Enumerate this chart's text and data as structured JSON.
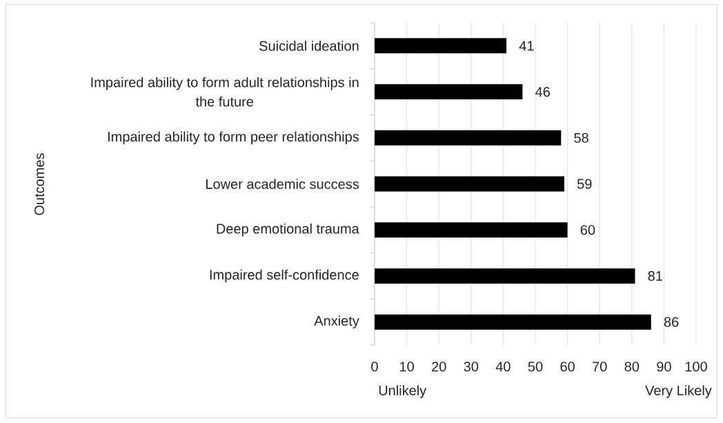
{
  "chart_data": {
    "type": "bar",
    "orientation": "horizontal",
    "ylabel": "Outcomes",
    "categories": [
      "Suicidal ideation",
      "Impaired ability to form adult relationships in the future",
      "Impaired ability to form peer relationships",
      "Lower academic success",
      "Deep emotional trauma",
      "Impaired self-confidence",
      "Anxiety"
    ],
    "values": [
      41,
      46,
      58,
      59,
      60,
      81,
      86
    ],
    "color": "#000000",
    "xlim": [
      0,
      100
    ],
    "xticks": [
      0,
      10,
      20,
      30,
      40,
      50,
      60,
      70,
      80,
      90,
      100
    ],
    "grid": "x",
    "data_labels": true,
    "annotations": [
      "Unlikely",
      "Very Likely"
    ]
  }
}
